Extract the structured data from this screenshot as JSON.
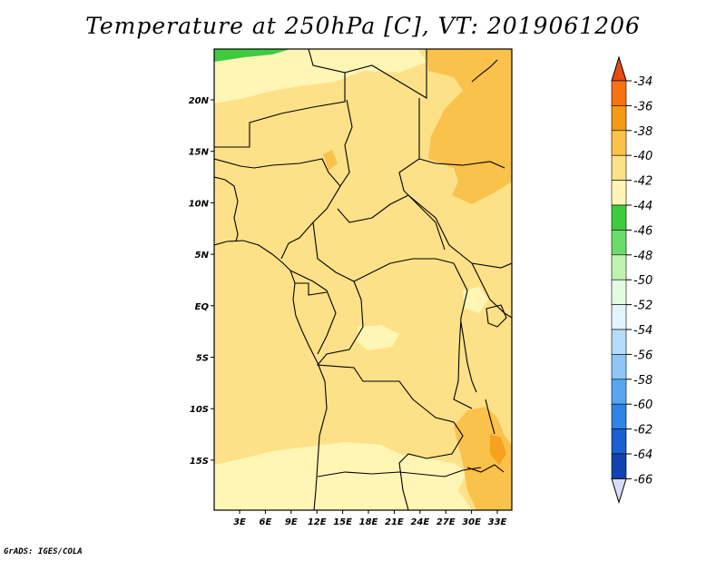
{
  "title": "Temperature at 250hPa [C], VT: 2019061206",
  "credit": "GrADS: IGES/COLA",
  "map": {
    "lat_labels": [
      "20N",
      "15N",
      "10N",
      "5N",
      "EQ",
      "5S",
      "10S",
      "15S"
    ],
    "lon_labels": [
      "3E",
      "6E",
      "9E",
      "12E",
      "15E",
      "18E",
      "21E",
      "24E",
      "27E",
      "30E",
      "33E"
    ],
    "fill_colors": {
      "c_38_36": "#f5a21e",
      "c_40_38": "#fac14b",
      "c_42_40": "#fde188",
      "c_44_42": "#fff5b5",
      "c_46_44": "#3ecb3e"
    }
  },
  "colorbar": {
    "labels": [
      "-34",
      "-36",
      "-38",
      "-40",
      "-42",
      "-44",
      "-46",
      "-48",
      "-50",
      "-52",
      "-54",
      "-56",
      "-58",
      "-60",
      "-62",
      "-64",
      "-66"
    ],
    "colors": [
      "#e94b10",
      "#f5740f",
      "#f59a14",
      "#fac14b",
      "#fde188",
      "#fff5b5",
      "#3ecb3e",
      "#6bdb6b",
      "#bff2b0",
      "#e2fbe2",
      "#e1f4ff",
      "#b5dcfa",
      "#8ec6f5",
      "#58a6ef",
      "#2e84e4",
      "#1b5fd0",
      "#1242b0",
      "#0b1a6e",
      "#d8dcf8"
    ]
  }
}
